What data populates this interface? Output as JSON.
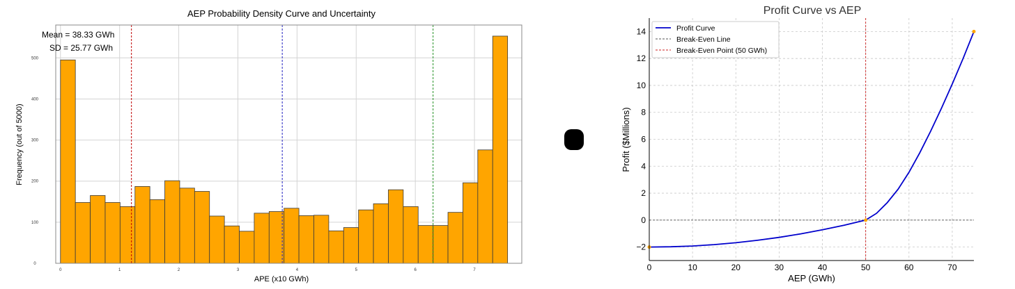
{
  "chart_data": [
    {
      "type": "bar",
      "title": "AEP Probability Density Curve and Uncertainty",
      "xlabel": "APE (x10 GWh)",
      "ylabel": "Frequency (out of 5000)",
      "xlim": [
        -0.08,
        7.8
      ],
      "ylim": [
        0,
        580
      ],
      "xticks": [
        "0",
        "1",
        "2",
        "3",
        "4",
        "5",
        "6",
        "7"
      ],
      "yticks": [
        "0",
        "100",
        "200",
        "300",
        "400",
        "500"
      ],
      "grid": true,
      "bin_start": 0.0,
      "bin_width": 0.252,
      "values": [
        495,
        148,
        165,
        148,
        138,
        187,
        155,
        201,
        183,
        175,
        115,
        91,
        78,
        122,
        126,
        134,
        116,
        117,
        79,
        87,
        130,
        145,
        179,
        138,
        92,
        92,
        124,
        196,
        276,
        553
      ],
      "bar_color": "#FFA500",
      "vlines": [
        {
          "x": 1.2,
          "color": "#c00000"
        },
        {
          "x": 3.75,
          "color": "#2020c0"
        },
        {
          "x": 6.3,
          "color": "#209020"
        }
      ],
      "annotations": [
        "Mean = 38.33 GWh",
        "SD = 25.77 GWh"
      ]
    },
    {
      "type": "line",
      "title": "Profit Curve vs AEP",
      "xlabel": "AEP (GWh)",
      "ylabel": "Profit ($Millions)",
      "xlim": [
        0,
        75
      ],
      "ylim": [
        -3,
        15
      ],
      "xticks": [
        "0",
        "10",
        "20",
        "30",
        "40",
        "50",
        "60",
        "70"
      ],
      "yticks": [
        "−2",
        "0",
        "2",
        "4",
        "6",
        "8",
        "10",
        "12",
        "14"
      ],
      "grid": true,
      "legend_position": "top-left",
      "series": [
        {
          "name": "Profit Curve",
          "color": "#0000cc",
          "x": [
            0,
            5,
            10,
            15,
            20,
            25,
            30,
            35,
            40,
            45,
            50,
            52.5,
            55,
            57.5,
            60,
            62.5,
            65,
            67.5,
            70,
            72.5,
            75
          ],
          "y": [
            -2,
            -1.98,
            -1.92,
            -1.82,
            -1.68,
            -1.5,
            -1.28,
            -1.02,
            -0.72,
            -0.38,
            0,
            0.5,
            1.3,
            2.3,
            3.55,
            5.0,
            6.6,
            8.3,
            10.1,
            12.0,
            14.0
          ]
        },
        {
          "name": "Break-Even Line",
          "color": "#555555",
          "style": "dashed",
          "y_const": 0
        },
        {
          "name": "Break-Even Point (50 GWh)",
          "color": "#cc2020",
          "style": "dashed",
          "x_const": 50
        }
      ],
      "markers": [
        {
          "x": 0,
          "y": -2,
          "color": "#FFA500"
        },
        {
          "x": 50,
          "y": 0,
          "color": "#FFA500"
        },
        {
          "x": 75,
          "y": 14,
          "color": "#FFA500"
        }
      ]
    }
  ]
}
